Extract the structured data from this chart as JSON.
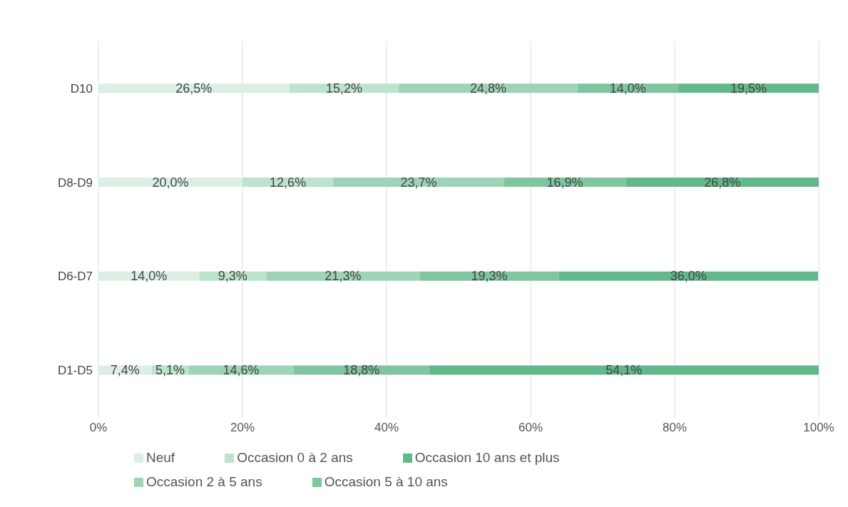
{
  "chart_data": {
    "type": "bar",
    "orientation": "horizontal",
    "stacked": true,
    "categories": [
      "D10",
      "D8-D9",
      "D6-D7",
      "D1-D5"
    ],
    "series": [
      {
        "name": "Neuf",
        "color": "#dcefe5",
        "values": [
          26.5,
          20.0,
          14.0,
          7.4
        ],
        "value_labels": [
          "26,5%",
          "20,0%",
          "14,0%",
          "7,4%"
        ]
      },
      {
        "name": "Occasion 0 à 2 ans",
        "color": "#bde3cf",
        "values": [
          15.2,
          12.6,
          9.3,
          5.1
        ],
        "value_labels": [
          "15,2%",
          "12,6%",
          "9,3%",
          "5,1%"
        ]
      },
      {
        "name": "Occasion 2 à 5 ans",
        "color": "#9dd3b6",
        "values": [
          24.8,
          23.7,
          21.3,
          14.6
        ],
        "value_labels": [
          "24,8%",
          "23,7%",
          "21,3%",
          "14,6%"
        ]
      },
      {
        "name": "Occasion 5 à 10 ans",
        "color": "#80c4a0",
        "values": [
          14.0,
          16.9,
          19.3,
          18.8
        ],
        "value_labels": [
          "14,0%",
          "16,9%",
          "19,3%",
          "18,8%"
        ]
      },
      {
        "name": "Occasion 10 ans et plus",
        "color": "#63b88b",
        "values": [
          19.5,
          26.8,
          36.0,
          54.1
        ],
        "value_labels": [
          "19,5%",
          "26,8%",
          "36,0%",
          "54,1%"
        ]
      }
    ],
    "xlim": [
      0,
      100
    ],
    "xticks": [
      {
        "value": 0,
        "label": "0%"
      },
      {
        "value": 20,
        "label": "20%"
      },
      {
        "value": 40,
        "label": "40%"
      },
      {
        "value": 60,
        "label": "60%"
      },
      {
        "value": 80,
        "label": "80%"
      },
      {
        "value": 100,
        "label": "100%"
      }
    ],
    "grid": "x",
    "legend": "bottom"
  }
}
